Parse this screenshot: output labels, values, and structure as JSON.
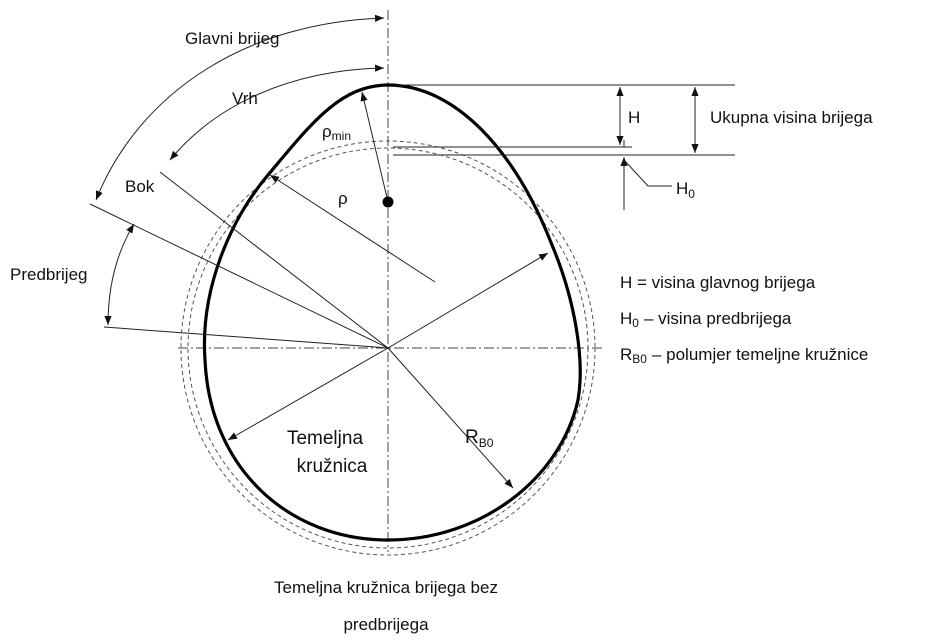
{
  "labels": {
    "glavni_brijeg": "Glavni brijeg",
    "vrh": "Vrh",
    "bok": "Bok",
    "predbrijeg": "Predbrijeg",
    "rho": "ρ",
    "rho_min": {
      "base": "ρ",
      "sub": "min"
    },
    "H": "H",
    "ukupna_visina": "Ukupna visina brijega",
    "H0": {
      "base": "H",
      "sub": "0"
    },
    "r_b0": {
      "base": "R",
      "sub": "B0"
    },
    "temeljna_kruznica": [
      "Temeljna",
      "kružnica"
    ]
  },
  "legend": [
    {
      "text": "H = visina glavnog brijega"
    },
    {
      "base": "H",
      "sub": "0",
      "text": "– visina predbrijega"
    },
    {
      "base": "R",
      "sub": "B0",
      "text": "– polumjer temeljne kružnice"
    }
  ],
  "caption": [
    "Temeljna kružnica brijega bez",
    "predbrijega"
  ]
}
